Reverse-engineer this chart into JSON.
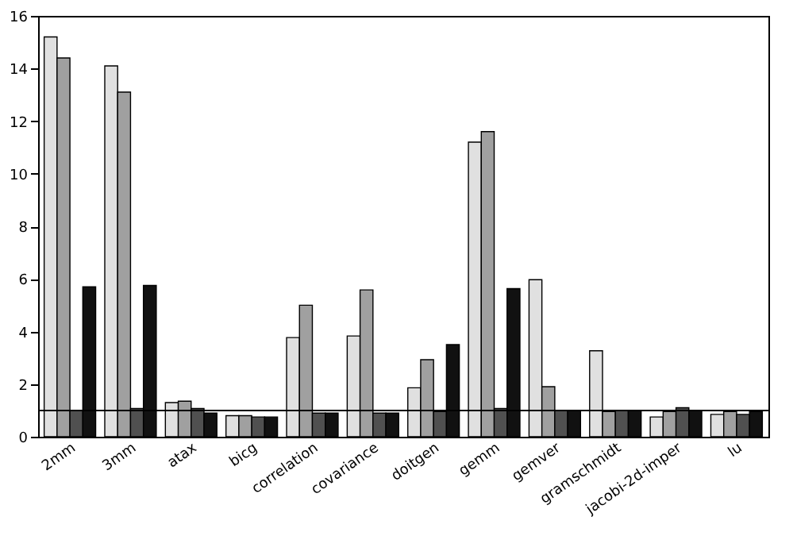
{
  "chart_data": {
    "type": "bar",
    "categories": [
      "2mm",
      "3mm",
      "atax",
      "bicg",
      "correlation",
      "covariance",
      "doitgen",
      "gemm",
      "gemver",
      "gramschmidt",
      "jacobi-2d-imper",
      "lu"
    ],
    "series": [
      {
        "color": "#e0e0e0",
        "values": [
          15.2,
          14.1,
          1.3,
          0.8,
          3.77,
          3.83,
          1.86,
          11.2,
          5.97,
          3.27,
          0.75,
          0.85
        ]
      },
      {
        "color": "#a0a0a0",
        "values": [
          14.4,
          13.1,
          1.35,
          0.8,
          5.0,
          5.58,
          2.93,
          11.6,
          1.9,
          0.96,
          0.96,
          0.96
        ]
      },
      {
        "color": "#505050",
        "values": [
          1.0,
          1.07,
          1.07,
          0.75,
          0.9,
          0.9,
          0.96,
          1.07,
          1.0,
          1.0,
          1.1,
          0.85
        ]
      },
      {
        "color": "#111111",
        "values": [
          5.7,
          5.75,
          0.9,
          0.75,
          0.9,
          0.9,
          3.5,
          5.63,
          1.0,
          1.0,
          1.0,
          0.96
        ]
      }
    ],
    "ylim": [
      0,
      16
    ],
    "yticks": [
      0,
      2,
      4,
      6,
      8,
      10,
      12,
      14,
      16
    ],
    "grid": false,
    "legend": false,
    "ref_lines": [
      {
        "axis": "y",
        "value": 1
      }
    ]
  }
}
